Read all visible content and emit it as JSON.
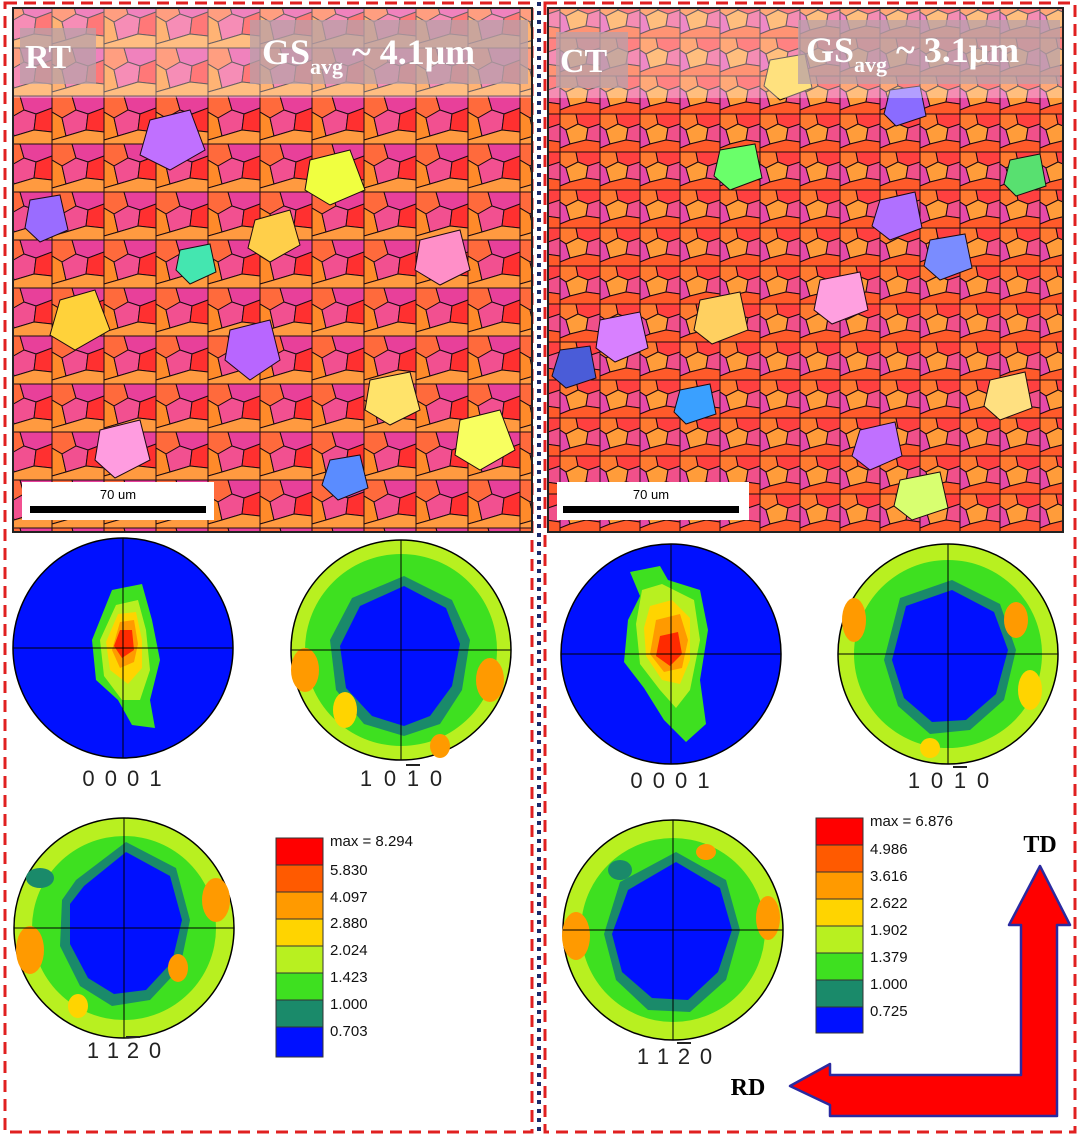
{
  "panels": {
    "left": {
      "label": "RT",
      "gs_main": "GS",
      "gs_sub": "avg",
      "gs_value": " ~ 4.1μm",
      "scale_bar": "70 um",
      "pole_figures": {
        "basal": "0 0 0 1",
        "prism_digits": [
          "1",
          "0",
          "1",
          "0"
        ],
        "pyramid_digits": [
          "1",
          "1",
          "2",
          "0"
        ]
      },
      "legend": {
        "max": "max = 8.294",
        "levels": [
          "5.830",
          "4.097",
          "2.880",
          "2.024",
          "1.423",
          "1.000",
          "0.703"
        ]
      }
    },
    "right": {
      "label": "CT",
      "gs_main": "GS",
      "gs_sub": "avg",
      "gs_value": " ~ 3.1μm",
      "scale_bar": "70 um",
      "pole_figures": {
        "basal": "0 0 0 1",
        "prism_digits": [
          "1",
          "0",
          "1",
          "0"
        ],
        "pyramid_digits": [
          "1",
          "1",
          "2",
          "0"
        ]
      },
      "legend": {
        "max": "max = 6.876",
        "levels": [
          "4.986",
          "3.616",
          "2.622",
          "1.902",
          "1.379",
          "1.000",
          "0.725"
        ]
      }
    }
  },
  "axes": {
    "td": "TD",
    "rd": "RD"
  },
  "colors": {
    "frame_red": "#e02020",
    "divider_blue": "#1a2a6c",
    "arrow_red": "#ff0000",
    "arrow_outline": "#2a2aa0",
    "legend_scale": [
      "#ff0000",
      "#ff5a00",
      "#ff9a00",
      "#ffd400",
      "#b8f020",
      "#3ee020",
      "#1a8a6a",
      "#0010ff"
    ]
  }
}
